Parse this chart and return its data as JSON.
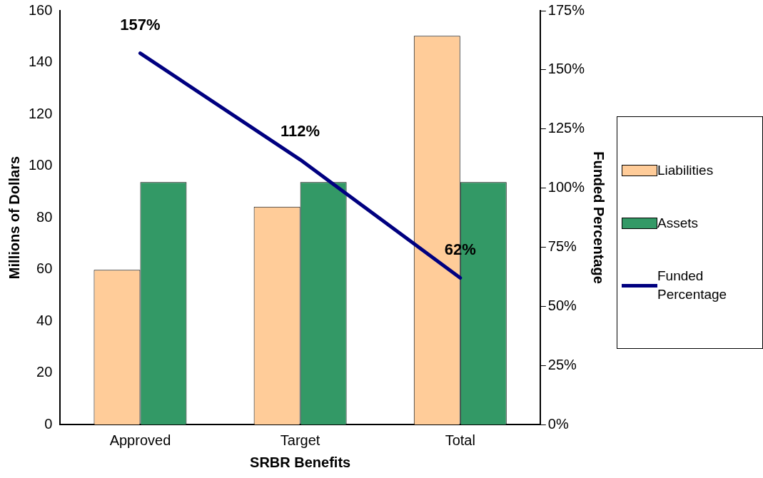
{
  "chart_data": {
    "type": "bar",
    "xlabel": "SRBR Benefits",
    "ylabel": "Millions of Dollars",
    "y2label": "Funded Percentage",
    "categories": [
      "Approved",
      "Target",
      "Total"
    ],
    "series": [
      {
        "name": "Liabilities",
        "color": "#ffcc99",
        "values": [
          59.8,
          84.2,
          150.3
        ]
      },
      {
        "name": "Assets",
        "color": "#339966",
        "values": [
          93.7,
          93.7,
          93.7
        ]
      },
      {
        "name": "Funded Percentage",
        "type": "line",
        "axis": "y2",
        "color": "#000080",
        "values": [
          157,
          112,
          62
        ],
        "value_labels": [
          "157%",
          "112%",
          "62%"
        ],
        "marker": "none"
      }
    ],
    "ylim": [
      0,
      160
    ],
    "yticks": [
      0,
      20,
      40,
      60,
      80,
      100,
      120,
      140,
      160
    ],
    "y2lim": [
      0,
      175
    ],
    "y2ticks": [
      {
        "value": 0,
        "label": "0%"
      },
      {
        "value": 25,
        "label": "25%"
      },
      {
        "value": 50,
        "label": "50%"
      },
      {
        "value": 75,
        "label": "75%"
      },
      {
        "value": 100,
        "label": "100%"
      },
      {
        "value": 125,
        "label": "125%"
      },
      {
        "value": 150,
        "label": "150%"
      },
      {
        "value": 175,
        "label": "175%"
      }
    ],
    "legend": "right",
    "grid": false
  }
}
